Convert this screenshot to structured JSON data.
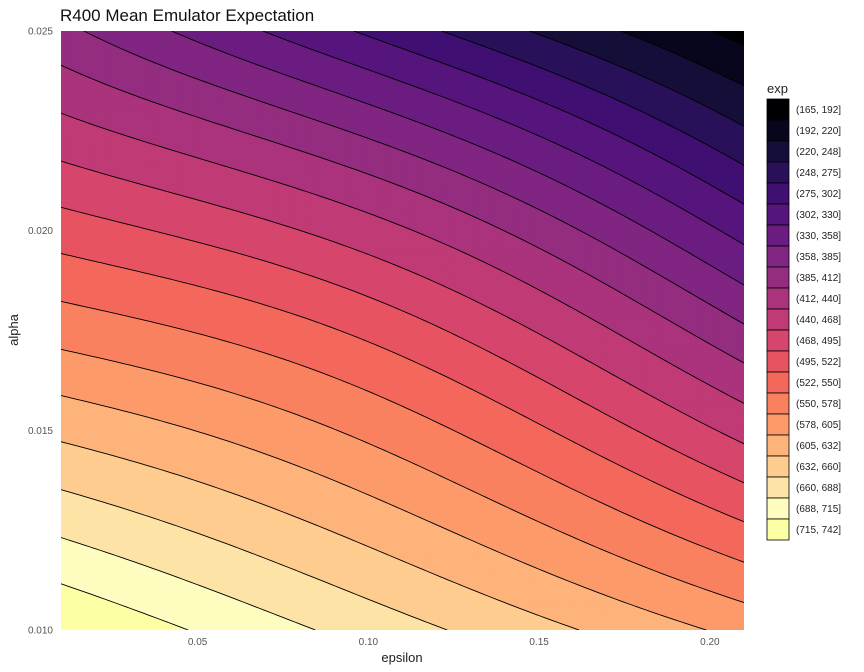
{
  "chart_data": {
    "type": "contour",
    "title": "R400 Mean Emulator Expectation",
    "xlabel": "epsilon",
    "ylabel": "alpha",
    "xlim": [
      0.01,
      0.21
    ],
    "ylim": [
      0.01,
      0.025
    ],
    "x_ticks": [
      {
        "value": 0.05,
        "label": "0.05"
      },
      {
        "value": 0.1,
        "label": "0.10"
      },
      {
        "value": 0.15,
        "label": "0.15"
      },
      {
        "value": 0.2,
        "label": "0.20"
      }
    ],
    "y_ticks": [
      {
        "value": 0.01,
        "label": "0.010"
      },
      {
        "value": 0.015,
        "label": "0.015"
      },
      {
        "value": 0.02,
        "label": "0.020"
      },
      {
        "value": 0.025,
        "label": "0.025"
      }
    ],
    "legend_title": "exp",
    "legend_position": "right",
    "bins": [
      {
        "label": "(165, 192]",
        "lo": 165,
        "hi": 192,
        "color": "#000004"
      },
      {
        "label": "(192, 220]",
        "lo": 192,
        "hi": 220,
        "color": "#07061c"
      },
      {
        "label": "(220, 248]",
        "lo": 220,
        "hi": 248,
        "color": "#150e38"
      },
      {
        "label": "(248, 275]",
        "lo": 248,
        "hi": 275,
        "color": "#29115a"
      },
      {
        "label": "(275, 302]",
        "lo": 275,
        "hi": 302,
        "color": "#3f0f72"
      },
      {
        "label": "(302, 330]",
        "lo": 302,
        "hi": 330,
        "color": "#56147d"
      },
      {
        "label": "(330, 358]",
        "lo": 330,
        "hi": 358,
        "color": "#6a1c81"
      },
      {
        "label": "(358, 385]",
        "lo": 358,
        "hi": 385,
        "color": "#802582"
      },
      {
        "label": "(385, 412]",
        "lo": 385,
        "hi": 412,
        "color": "#942c80"
      },
      {
        "label": "(412, 440]",
        "lo": 412,
        "hi": 440,
        "color": "#ab337c"
      },
      {
        "label": "(440, 468]",
        "lo": 440,
        "hi": 468,
        "color": "#c03a76"
      },
      {
        "label": "(468, 495]",
        "lo": 468,
        "hi": 495,
        "color": "#d6456c"
      },
      {
        "label": "(495, 522]",
        "lo": 495,
        "hi": 522,
        "color": "#e85362"
      },
      {
        "label": "(522, 550]",
        "lo": 522,
        "hi": 550,
        "color": "#f4685c"
      },
      {
        "label": "(550, 578]",
        "lo": 550,
        "hi": 578,
        "color": "#fa815f"
      },
      {
        "label": "(578, 605]",
        "lo": 578,
        "hi": 605,
        "color": "#fd9a6a"
      },
      {
        "label": "(605, 632]",
        "lo": 605,
        "hi": 632,
        "color": "#feb37b"
      },
      {
        "label": "(632, 660]",
        "lo": 632,
        "hi": 660,
        "color": "#fecc8f"
      },
      {
        "label": "(660, 688]",
        "lo": 660,
        "hi": 688,
        "color": "#fde4a6"
      },
      {
        "label": "(688, 715]",
        "lo": 688,
        "hi": 715,
        "color": "#fcfdbf"
      },
      {
        "label": "(715, 742]",
        "lo": 715,
        "hi": 742,
        "color": "#fcffa4"
      }
    ],
    "surface_samples": [
      {
        "epsilon": 0.01,
        "alpha": 0.01,
        "exp": 740
      },
      {
        "epsilon": 0.21,
        "alpha": 0.01,
        "exp": 500
      },
      {
        "epsilon": 0.01,
        "alpha": 0.025,
        "exp": 370
      },
      {
        "epsilon": 0.21,
        "alpha": 0.025,
        "exp": 170
      }
    ]
  }
}
